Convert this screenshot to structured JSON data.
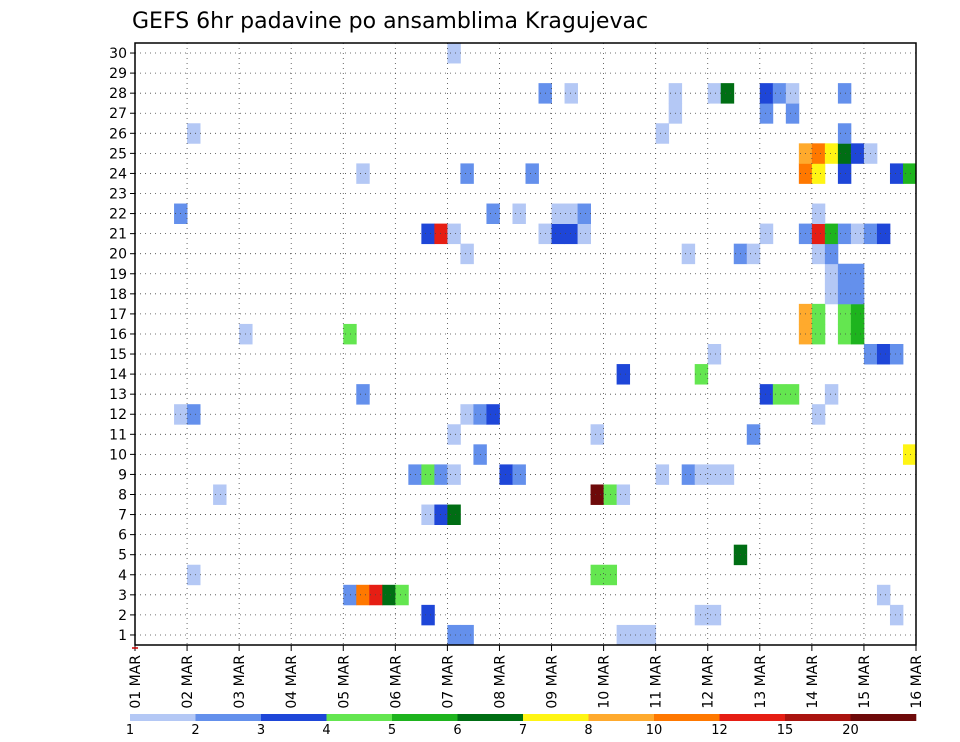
{
  "chart_data": {
    "type": "heatmap",
    "title": "GEFS 6hr padavine po ansamblima Kragujevac",
    "xlabel": "",
    "ylabel": "",
    "x_tick_labels": [
      "01 MAR",
      "02 MAR",
      "03 MAR",
      "04 MAR",
      "05 MAR",
      "06 MAR",
      "07 MAR",
      "08 MAR",
      "09 MAR",
      "10 MAR",
      "11 MAR",
      "12 MAR",
      "13 MAR",
      "14 MAR",
      "15 MAR",
      "16 MAR"
    ],
    "y_tick_labels": [
      "1",
      "2",
      "3",
      "4",
      "5",
      "6",
      "7",
      "8",
      "9",
      "10",
      "11",
      "12",
      "13",
      "14",
      "15",
      "16",
      "17",
      "18",
      "19",
      "20",
      "21",
      "22",
      "23",
      "24",
      "25",
      "26",
      "27",
      "28",
      "29",
      "30"
    ],
    "x_range_days": [
      0,
      15
    ],
    "y_range": [
      0,
      30
    ],
    "steps_per_day": 4,
    "grid": true,
    "legend": {
      "position": "bottom",
      "thresholds": [
        "1",
        "2",
        "3",
        "4",
        "5",
        "6",
        "7",
        "8",
        "10",
        "12",
        "15",
        "20"
      ],
      "colors": [
        "#b4c8f5",
        "#6490ec",
        "#1e46d8",
        "#64e650",
        "#1eb41e",
        "#006e14",
        "#fff514",
        "#ffaa2d",
        "#ff7800",
        "#e61e14",
        "#aa140f",
        "#6e0a0a"
      ]
    },
    "cells": [
      {
        "m": 1,
        "s": [
          [
            24,
            1
          ],
          [
            25,
            1
          ],
          [
            37,
            0
          ],
          [
            38,
            0
          ],
          [
            39,
            0
          ]
        ]
      },
      {
        "m": 2,
        "s": [
          [
            22,
            2
          ],
          [
            43,
            0
          ],
          [
            44,
            0
          ],
          [
            58,
            0
          ]
        ]
      },
      {
        "m": 3,
        "s": [
          [
            16,
            1
          ],
          [
            17,
            8
          ],
          [
            18,
            9
          ],
          [
            19,
            5
          ],
          [
            20,
            3
          ],
          [
            57,
            0
          ]
        ]
      },
      {
        "m": 4,
        "s": [
          [
            4,
            0
          ],
          [
            35,
            3
          ],
          [
            36,
            3
          ]
        ]
      },
      {
        "m": 5,
        "s": [
          [
            46,
            5
          ]
        ]
      },
      {
        "m": 7,
        "s": [
          [
            22,
            0
          ],
          [
            23,
            2
          ],
          [
            24,
            5
          ]
        ]
      },
      {
        "m": 8,
        "s": [
          [
            6,
            0
          ],
          [
            35,
            11
          ],
          [
            36,
            3
          ],
          [
            37,
            0
          ]
        ]
      },
      {
        "m": 9,
        "s": [
          [
            21,
            1
          ],
          [
            22,
            3
          ],
          [
            23,
            1
          ],
          [
            24,
            0
          ],
          [
            28,
            2
          ],
          [
            29,
            1
          ],
          [
            40,
            0
          ],
          [
            42,
            1
          ],
          [
            43,
            0
          ],
          [
            44,
            0
          ],
          [
            45,
            0
          ]
        ]
      },
      {
        "m": 10,
        "s": [
          [
            26,
            1
          ],
          [
            59,
            6
          ]
        ]
      },
      {
        "m": 11,
        "s": [
          [
            24,
            0
          ],
          [
            35,
            0
          ],
          [
            47,
            1
          ]
        ]
      },
      {
        "m": 12,
        "s": [
          [
            3,
            0
          ],
          [
            4,
            1
          ],
          [
            25,
            0
          ],
          [
            26,
            1
          ],
          [
            27,
            2
          ],
          [
            52,
            0
          ]
        ]
      },
      {
        "m": 13,
        "s": [
          [
            17,
            1
          ],
          [
            48,
            2
          ],
          [
            49,
            3
          ],
          [
            50,
            3
          ],
          [
            53,
            0
          ]
        ]
      },
      {
        "m": 14,
        "s": [
          [
            37,
            2
          ],
          [
            43,
            3
          ]
        ]
      },
      {
        "m": 15,
        "s": [
          [
            44,
            0
          ],
          [
            56,
            1
          ],
          [
            57,
            2
          ],
          [
            58,
            1
          ]
        ]
      },
      {
        "m": 16,
        "s": [
          [
            8,
            0
          ],
          [
            16,
            3
          ],
          [
            51,
            7
          ],
          [
            52,
            3
          ],
          [
            54,
            3
          ],
          [
            55,
            4
          ]
        ]
      },
      {
        "m": 17,
        "s": [
          [
            51,
            7
          ],
          [
            52,
            3
          ],
          [
            54,
            3
          ],
          [
            55,
            4
          ]
        ]
      },
      {
        "m": 18,
        "s": [
          [
            53,
            0
          ],
          [
            54,
            1
          ],
          [
            55,
            1
          ]
        ]
      },
      {
        "m": 19,
        "s": [
          [
            53,
            0
          ],
          [
            54,
            1
          ],
          [
            55,
            1
          ]
        ]
      },
      {
        "m": 20,
        "s": [
          [
            25,
            0
          ],
          [
            42,
            0
          ],
          [
            46,
            1
          ],
          [
            47,
            0
          ],
          [
            52,
            0
          ],
          [
            53,
            1
          ]
        ]
      },
      {
        "m": 21,
        "s": [
          [
            22,
            2
          ],
          [
            23,
            9
          ],
          [
            24,
            0
          ],
          [
            31,
            0
          ],
          [
            32,
            2
          ],
          [
            33,
            2
          ],
          [
            34,
            0
          ],
          [
            48,
            0
          ],
          [
            51,
            1
          ],
          [
            52,
            9
          ],
          [
            53,
            4
          ],
          [
            54,
            1
          ],
          [
            55,
            0
          ],
          [
            56,
            1
          ],
          [
            57,
            2
          ]
        ]
      },
      {
        "m": 22,
        "s": [
          [
            3,
            1
          ],
          [
            27,
            1
          ],
          [
            29,
            0
          ],
          [
            32,
            0
          ],
          [
            33,
            0
          ],
          [
            34,
            1
          ],
          [
            52,
            0
          ]
        ]
      },
      {
        "m": 24,
        "s": [
          [
            17,
            0
          ],
          [
            25,
            1
          ],
          [
            30,
            1
          ],
          [
            51,
            8
          ],
          [
            52,
            6
          ],
          [
            54,
            2
          ],
          [
            58,
            2
          ],
          [
            59,
            4
          ]
        ]
      },
      {
        "m": 25,
        "s": [
          [
            51,
            7
          ],
          [
            52,
            8
          ],
          [
            53,
            6
          ],
          [
            54,
            5
          ],
          [
            55,
            2
          ],
          [
            56,
            0
          ]
        ]
      },
      {
        "m": 26,
        "s": [
          [
            4,
            0
          ],
          [
            40,
            0
          ],
          [
            54,
            1
          ]
        ]
      },
      {
        "m": 27,
        "s": [
          [
            41,
            0
          ],
          [
            48,
            1
          ],
          [
            50,
            1
          ]
        ]
      },
      {
        "m": 28,
        "s": [
          [
            31,
            1
          ],
          [
            33,
            0
          ],
          [
            41,
            0
          ],
          [
            44,
            0
          ],
          [
            45,
            5
          ],
          [
            48,
            2
          ],
          [
            49,
            1
          ],
          [
            50,
            0
          ],
          [
            54,
            1
          ]
        ]
      },
      {
        "m": 30,
        "s": [
          [
            24,
            0
          ]
        ]
      }
    ]
  }
}
